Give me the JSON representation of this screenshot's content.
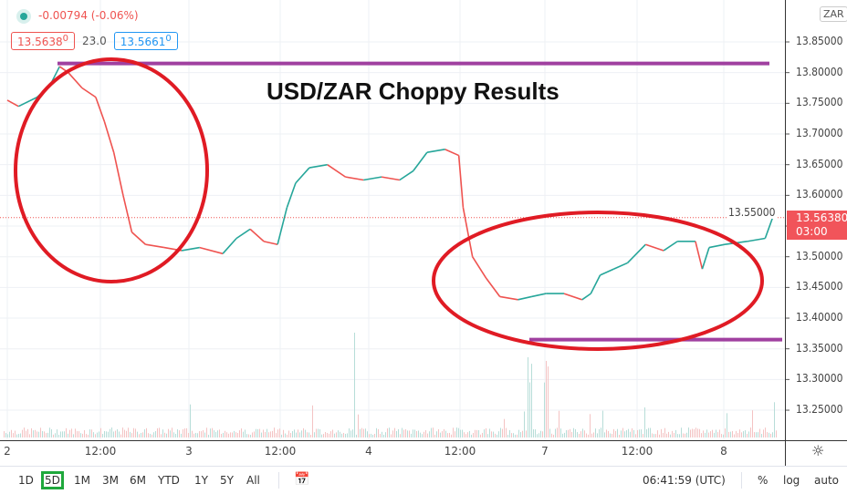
{
  "symbol_currency": "ZAR",
  "legend": {
    "change": "-0.00794 (-0.06%)",
    "sell": "13.5638",
    "sell_sup": "0",
    "spread": "23.0",
    "buy": "13.5661",
    "buy_sup": "0"
  },
  "annotation_title": "USD/ZAR Choppy Results",
  "last_price": {
    "value": "13.56380",
    "countdown": "03:00"
  },
  "toolbar": {
    "ranges": [
      "1D",
      "5D",
      "1M",
      "3M",
      "6M",
      "YTD",
      "1Y",
      "5Y",
      "All"
    ],
    "active_range": "5D",
    "time": "06:41:59 (UTC)",
    "percent": "%",
    "log": "log",
    "auto": "auto"
  },
  "colors": {
    "up": "#26a69a",
    "down": "#ef5350",
    "annotation_line": "#a040a0",
    "ellipse": "#e01b24"
  },
  "chart_data": {
    "type": "line",
    "title": "USD/ZAR Choppy Results",
    "y_ticks": [
      "13.85000",
      "13.80000",
      "13.75000",
      "13.70000",
      "13.65000",
      "13.60000",
      "13.55000",
      "13.50000",
      "13.45000",
      "13.40000",
      "13.35000",
      "13.30000",
      "13.25000"
    ],
    "ylim": [
      13.2,
      13.88
    ],
    "x_ticks": [
      "2",
      "12:00",
      "3",
      "12:00",
      "4",
      "12:00",
      "7",
      "12:00",
      "8"
    ],
    "trading_days": [
      2,
      3,
      4,
      7,
      8
    ],
    "series": [
      {
        "points": [
          [
            "2 00:00",
            13.755
          ],
          [
            "2 01:30",
            13.745
          ],
          [
            "2 04:00",
            13.76
          ],
          [
            "2 05:45",
            13.78
          ],
          [
            "2 07:00",
            13.81
          ],
          [
            "2 08:10",
            13.8
          ],
          [
            "2 10:00",
            13.775
          ],
          [
            "2 11:50",
            13.76
          ],
          [
            "2 13:00",
            13.72
          ],
          [
            "2 14:15",
            13.67
          ],
          [
            "2 15:30",
            13.6
          ],
          [
            "2 16:40",
            13.54
          ],
          [
            "2 18:30",
            13.52
          ],
          [
            "2 21:00",
            13.515
          ],
          [
            "2 23:20",
            13.51
          ],
          [
            "3 01:45",
            13.515
          ],
          [
            "3 04:50",
            13.505
          ],
          [
            "3 06:40",
            13.53
          ],
          [
            "3 08:30",
            13.545
          ],
          [
            "3 10:20",
            13.525
          ],
          [
            "3 12:10",
            13.52
          ],
          [
            "3 13:25",
            13.58
          ],
          [
            "3 14:35",
            13.62
          ],
          [
            "3 16:25",
            13.645
          ],
          [
            "3 18:50",
            13.65
          ],
          [
            "3 21:15",
            13.63
          ],
          [
            "3 23:40",
            13.625
          ],
          [
            "4 02:05",
            13.63
          ],
          [
            "4 04:30",
            13.625
          ],
          [
            "4 06:20",
            13.64
          ],
          [
            "4 08:10",
            13.67
          ],
          [
            "4 10:35",
            13.675
          ],
          [
            "4 12:25",
            13.665
          ],
          [
            "4 13:00",
            13.58
          ],
          [
            "4 14:15",
            13.5
          ],
          [
            "4 16:05",
            13.465
          ],
          [
            "4 17:55",
            13.435
          ],
          [
            "4 20:20",
            13.43
          ],
          [
            "4 22:10",
            13.435
          ],
          [
            "7 00:05",
            13.44
          ],
          [
            "7 02:30",
            13.44
          ],
          [
            "7 04:55",
            13.43
          ],
          [
            "7 06:05",
            13.44
          ],
          [
            "7 07:20",
            13.47
          ],
          [
            "7 09:10",
            13.48
          ],
          [
            "7 11:00",
            13.49
          ],
          [
            "7 13:25",
            13.52
          ],
          [
            "7 15:50",
            13.51
          ],
          [
            "7 17:40",
            13.525
          ],
          [
            "7 20:05",
            13.525
          ],
          [
            "7 21:00",
            13.48
          ],
          [
            "7 21:55",
            13.515
          ],
          [
            "8 00:00",
            13.52
          ],
          [
            "8 03:00",
            13.525
          ],
          [
            "8 05:25",
            13.53
          ],
          [
            "8 06:25",
            13.5638
          ]
        ]
      }
    ],
    "annotations": {
      "resistance": 13.815,
      "support": 13.365
    }
  }
}
